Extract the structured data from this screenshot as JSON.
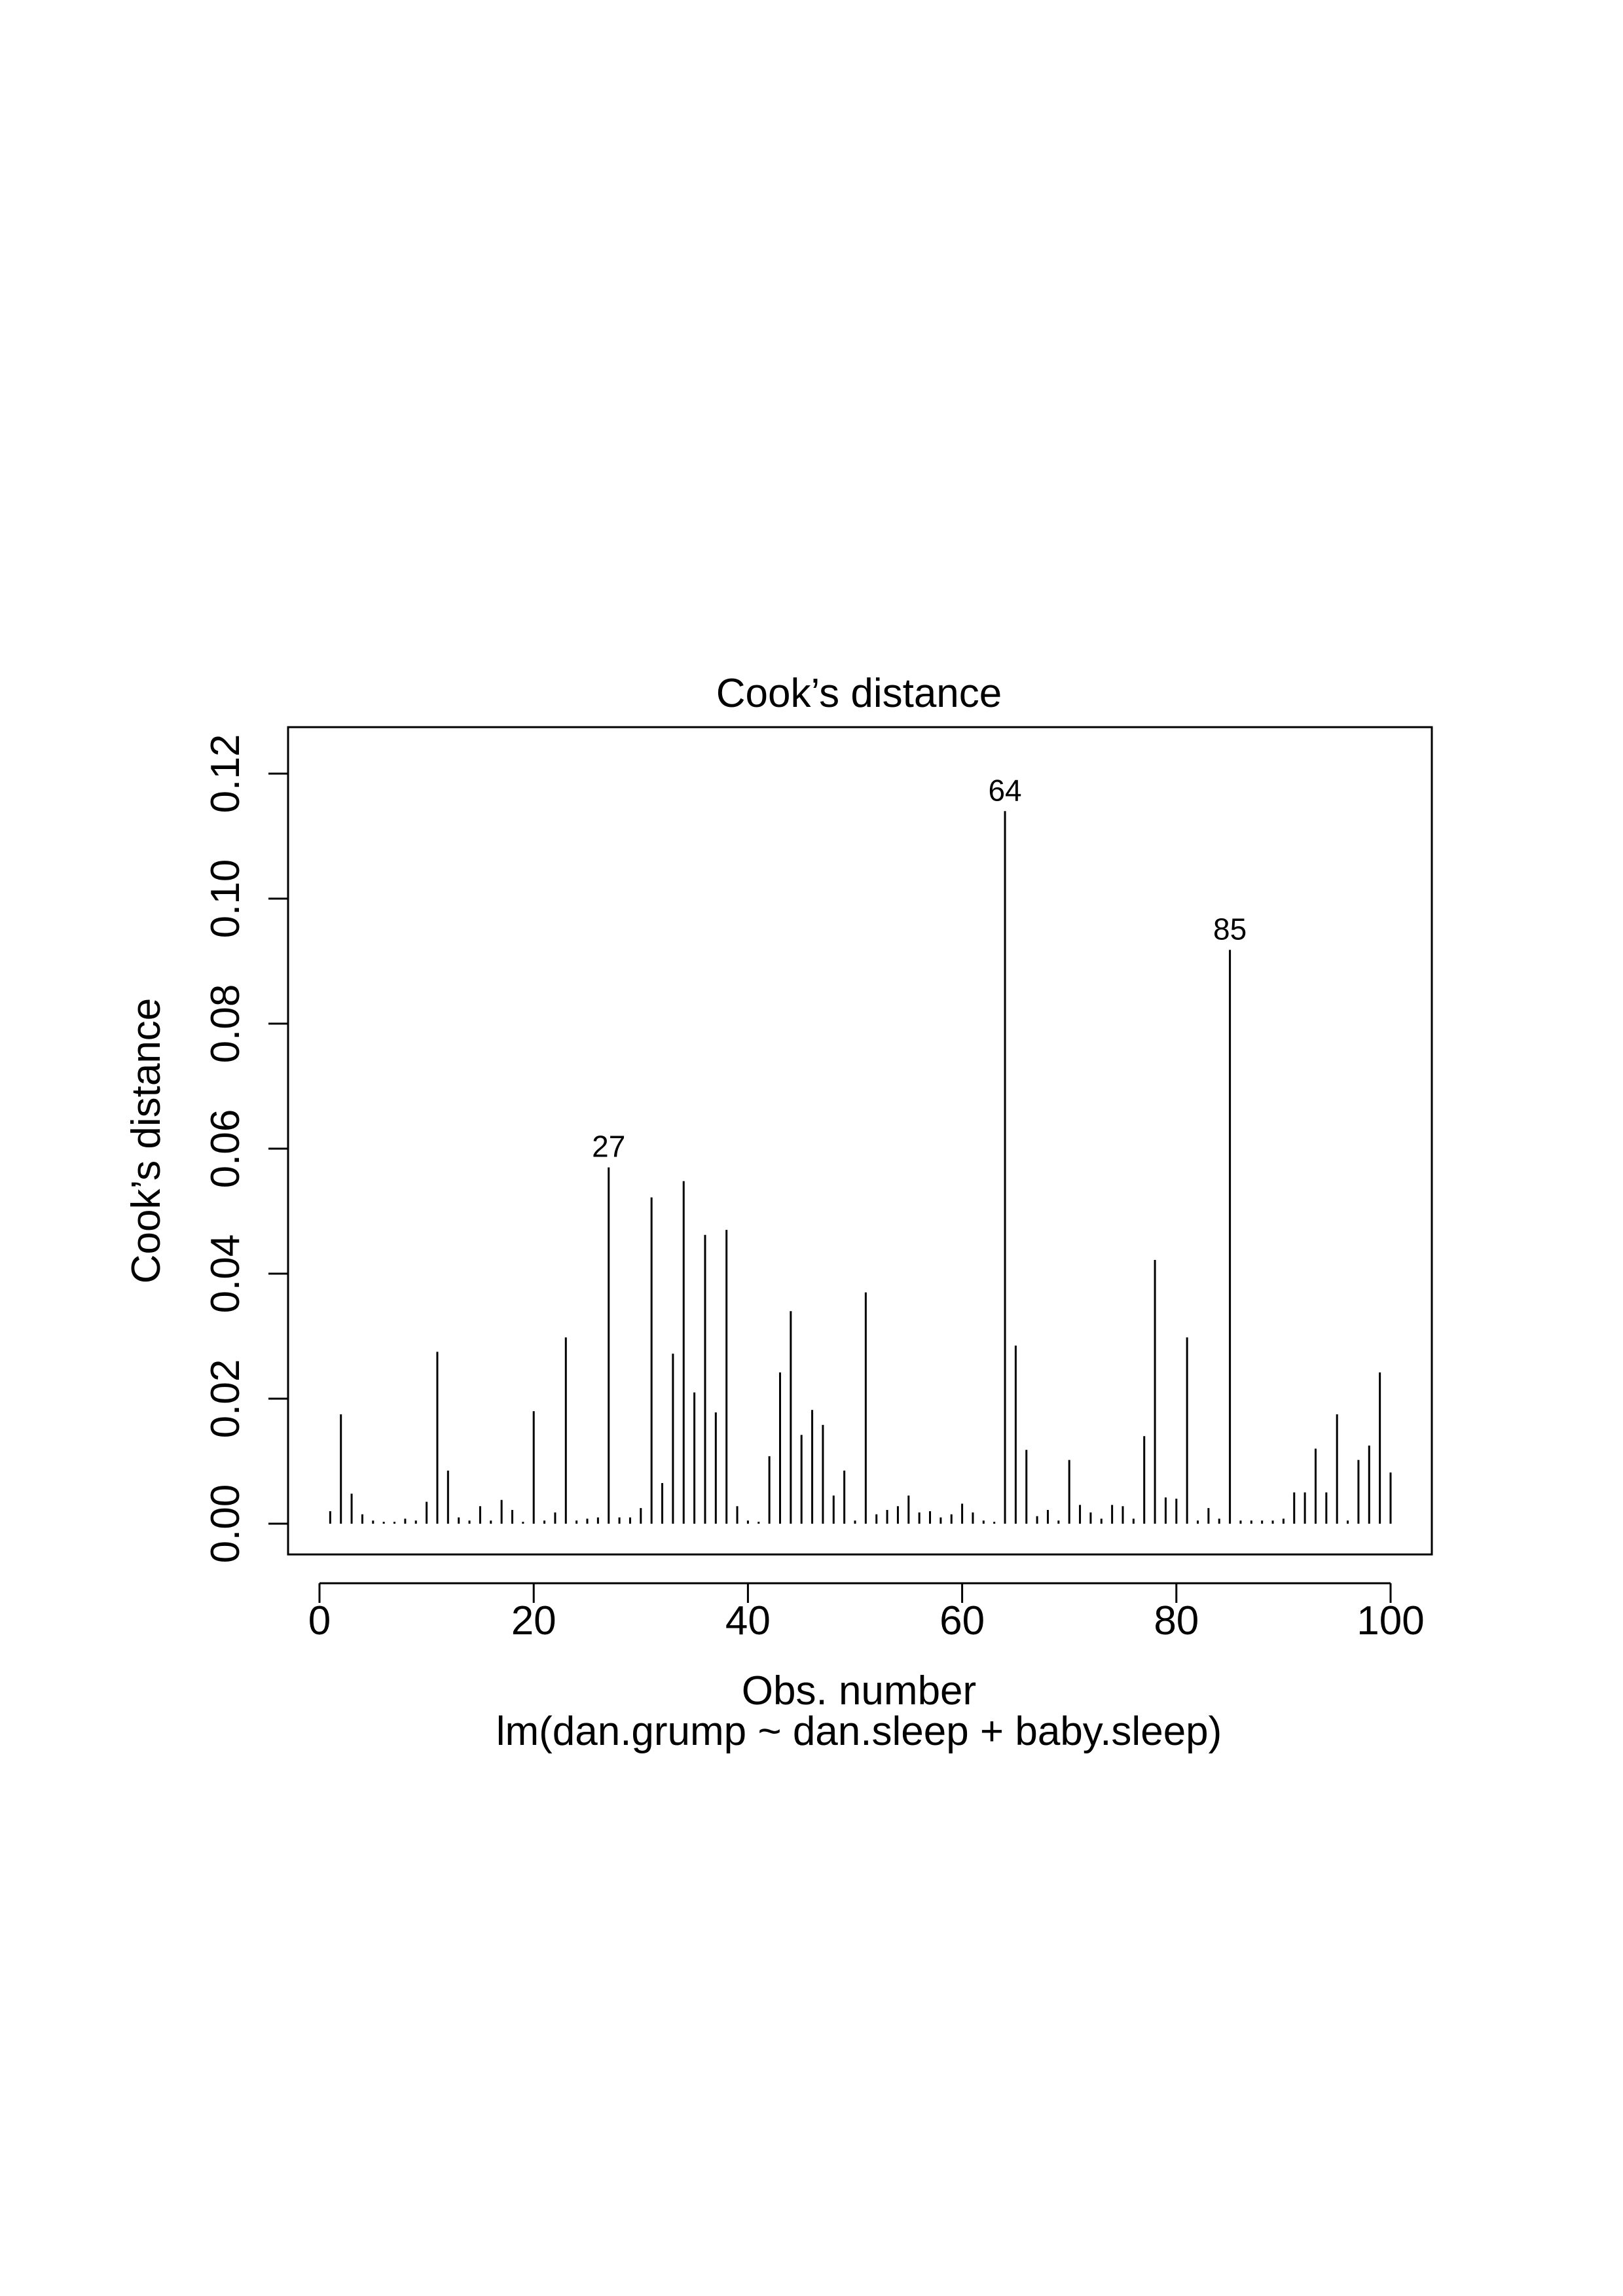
{
  "chart_data": {
    "type": "bar",
    "title": "Cook’s distance",
    "xlabel": "Obs. number",
    "ylabel": "Cook’s distance",
    "subtitle": "lm(dan.grump ~ dan.sleep + baby.sleep)",
    "xlim": [
      0,
      100
    ],
    "ylim": [
      0,
      0.12
    ],
    "xticks": [
      0,
      20,
      40,
      60,
      80,
      100
    ],
    "yticks": [
      0.0,
      0.02,
      0.04,
      0.06,
      0.08,
      0.1,
      0.12
    ],
    "xtick_labels": [
      "0",
      "20",
      "40",
      "60",
      "80",
      "100"
    ],
    "ytick_labels": [
      "0.00",
      "0.02",
      "0.04",
      "0.06",
      "0.08",
      "0.10",
      "0.12"
    ],
    "grid": false,
    "x": [
      1,
      2,
      3,
      4,
      5,
      6,
      7,
      8,
      9,
      10,
      11,
      12,
      13,
      14,
      15,
      16,
      17,
      18,
      19,
      20,
      21,
      22,
      23,
      24,
      25,
      26,
      27,
      28,
      29,
      30,
      31,
      32,
      33,
      34,
      35,
      36,
      37,
      38,
      39,
      40,
      41,
      42,
      43,
      44,
      45,
      46,
      47,
      48,
      49,
      50,
      51,
      52,
      53,
      54,
      55,
      56,
      57,
      58,
      59,
      60,
      61,
      62,
      63,
      64,
      65,
      66,
      67,
      68,
      69,
      70,
      71,
      72,
      73,
      74,
      75,
      76,
      77,
      78,
      79,
      80,
      81,
      82,
      83,
      84,
      85,
      86,
      87,
      88,
      89,
      90,
      91,
      92,
      93,
      94,
      95,
      96,
      97,
      98,
      99,
      100
    ],
    "values": [
      0.002,
      0.0175,
      0.0048,
      0.0015,
      0.0005,
      0.0003,
      0.0003,
      0.0008,
      0.0005,
      0.0035,
      0.0275,
      0.0085,
      0.001,
      0.0005,
      0.0028,
      0.0005,
      0.0038,
      0.0022,
      0.0003,
      0.018,
      0.0005,
      0.0018,
      0.0298,
      0.0005,
      0.0008,
      0.001,
      0.057,
      0.001,
      0.001,
      0.0025,
      0.0522,
      0.0065,
      0.0272,
      0.0548,
      0.021,
      0.0462,
      0.0178,
      0.047,
      0.0028,
      0.0005,
      0.0003,
      0.0108,
      0.0242,
      0.034,
      0.0142,
      0.0182,
      0.0158,
      0.0045,
      0.0085,
      0.0005,
      0.037,
      0.0015,
      0.0022,
      0.0028,
      0.0045,
      0.0018,
      0.002,
      0.001,
      0.0015,
      0.0032,
      0.0018,
      0.0005,
      0.0003,
      0.114,
      0.0285,
      0.0118,
      0.0012,
      0.0022,
      0.0005,
      0.0102,
      0.003,
      0.0018,
      0.0008,
      0.003,
      0.0028,
      0.0008,
      0.014,
      0.0422,
      0.0042,
      0.004,
      0.0298,
      0.0005,
      0.0025,
      0.0008,
      0.0918,
      0.0005,
      0.0005,
      0.0005,
      0.0005,
      0.0008,
      0.005,
      0.005,
      0.012,
      0.005,
      0.0175,
      0.0005,
      0.0102,
      0.0125,
      0.0242,
      0.0082
    ],
    "annotations": [
      {
        "x": 27,
        "label": "27"
      },
      {
        "x": 64,
        "label": "64"
      },
      {
        "x": 85,
        "label": "85"
      }
    ]
  }
}
